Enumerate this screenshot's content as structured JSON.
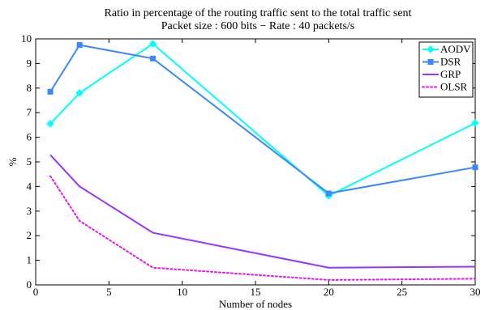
{
  "chart_data": {
    "type": "line",
    "title": "Ratio in percentage of the routing traffic sent to the total traffic sent",
    "subtitle": "Packet size : 600 bits − Rate : 40 packets/s",
    "xlabel": "Number of nodes",
    "ylabel": "%",
    "xlim": [
      0,
      30
    ],
    "ylim": [
      0,
      10
    ],
    "xticks": [
      0,
      5,
      10,
      15,
      20,
      25,
      30
    ],
    "yticks": [
      0,
      1,
      2,
      3,
      4,
      5,
      6,
      7,
      8,
      9,
      10
    ],
    "grid": false,
    "legend_position": "top-right",
    "x": [
      1,
      3,
      8,
      20,
      30
    ],
    "series": [
      {
        "name": "AODV",
        "values": [
          6.55,
          7.8,
          9.8,
          3.62,
          6.58
        ],
        "color": "#00ffff",
        "marker": "diamond",
        "dash": "solid"
      },
      {
        "name": "DSR",
        "values": [
          7.85,
          9.75,
          9.2,
          3.72,
          4.78
        ],
        "color": "#3b87ff",
        "marker": "square",
        "dash": "solid"
      },
      {
        "name": "GRP",
        "values": [
          5.28,
          4.0,
          2.12,
          0.7,
          0.74
        ],
        "color": "#9933ff",
        "marker": "none",
        "dash": "solid"
      },
      {
        "name": "OLSR",
        "values": [
          4.42,
          2.6,
          0.7,
          0.2,
          0.25
        ],
        "color": "#ee11ee",
        "marker": "none",
        "dash": "dotted"
      }
    ]
  }
}
